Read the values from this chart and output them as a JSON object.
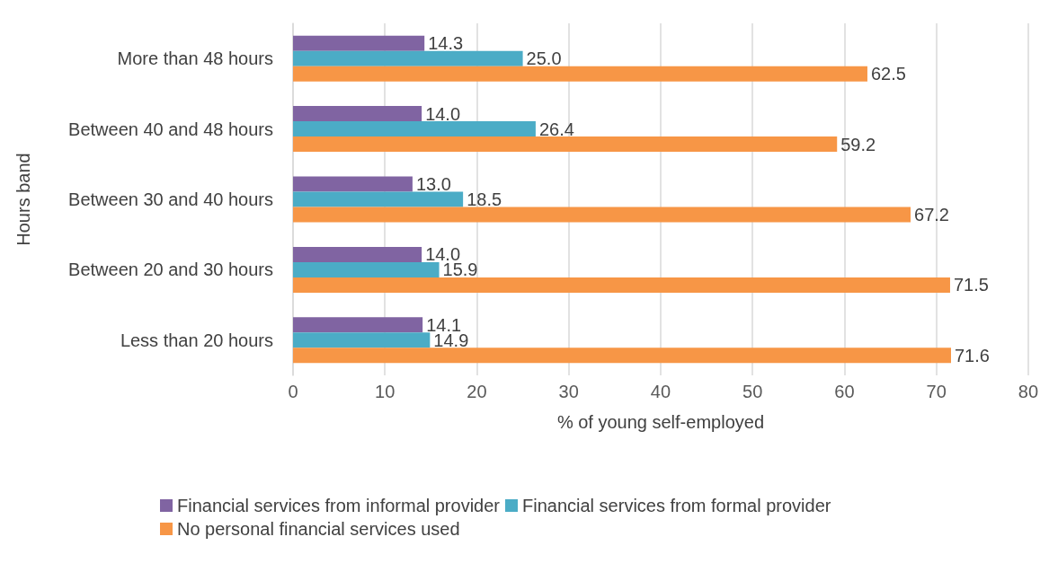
{
  "chart_data": {
    "type": "bar",
    "orientation": "horizontal",
    "xlabel": "% of young self-employed",
    "ylabel": "Hours band",
    "categories": [
      "More than 48 hours",
      "Between 40 and 48 hours",
      "Between 30 and 40 hours",
      "Between 20 and 30 hours",
      "Less than 20 hours"
    ],
    "series": [
      {
        "name": "Financial services from informal provider",
        "color": "#8064a2",
        "values": [
          14.3,
          14.0,
          13.0,
          14.0,
          14.1
        ],
        "value_labels": [
          "14.3",
          "14.0",
          "13.0",
          "14.0",
          "14.1"
        ]
      },
      {
        "name": "Financial services from formal provider",
        "color": "#4bacc6",
        "values": [
          25.0,
          26.4,
          18.5,
          15.9,
          14.9
        ],
        "value_labels": [
          "25.0",
          "26.4",
          "18.5",
          "15.9",
          "14.9"
        ]
      },
      {
        "name": "No personal financial services used",
        "color": "#f79646",
        "values": [
          62.5,
          59.2,
          67.2,
          71.5,
          71.6
        ],
        "value_labels": [
          "62.5",
          "59.2",
          "67.2",
          "71.5",
          "71.6"
        ]
      }
    ],
    "xlim": [
      0,
      80
    ],
    "xticks": [
      0,
      10,
      20,
      30,
      40,
      50,
      60,
      70,
      80
    ],
    "grid": "x",
    "legend": "bottom"
  }
}
